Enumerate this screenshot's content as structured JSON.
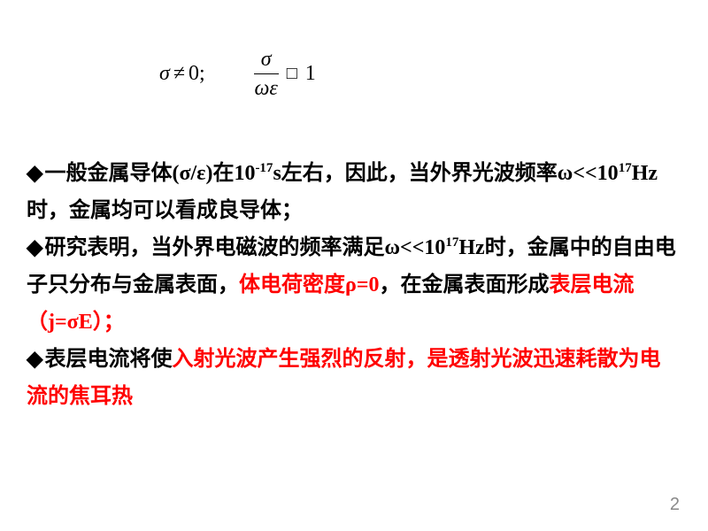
{
  "formula": {
    "sigma": "σ",
    "neq": "≠",
    "zero": "0;",
    "num": "σ",
    "den": "ωε",
    "op": "□",
    "one": "1"
  },
  "text": {
    "b1_pre": "一般金属导体",
    "b1_paren": "(σ/ε)",
    "b1_mid1": "在",
    "b1_exp1": "10",
    "b1_exp1sup": "-17",
    "b1_unit1": "s",
    "b1_mid2": "左右，因此，当外界光波频率",
    "b1_omega": "ω<<10",
    "b1_exp2sup": "17",
    "b1_hz": "Hz",
    "b1_mid3": "时，金属均可以看成良导体；",
    "b2_pre": "研究表明，当外界电磁波的频率满足",
    "b2_omega": "ω<<10",
    "b2_exp": "17",
    "b2_hz": "Hz",
    "b2_mid1": "时，金属中的自由电子只分布与金属表面，",
    "b2_red1": "体电荷密度ρ=0",
    "b2_mid2": "，在金属表面形成",
    "b2_red2": "表层电流（j=σE）；",
    "b3_pre": "表层电流将使",
    "b3_red": "入射光波产生强烈的反射，是透射光波迅速耗散为电流的焦耳热"
  },
  "style": {
    "red": "#ff0000",
    "text_color": "#000000",
    "page_num_color": "#898989",
    "fontsize_main": 24,
    "fontsize_sup": 15,
    "line_height": 1.75
  },
  "pageNumber": "2",
  "bullet": "◆"
}
